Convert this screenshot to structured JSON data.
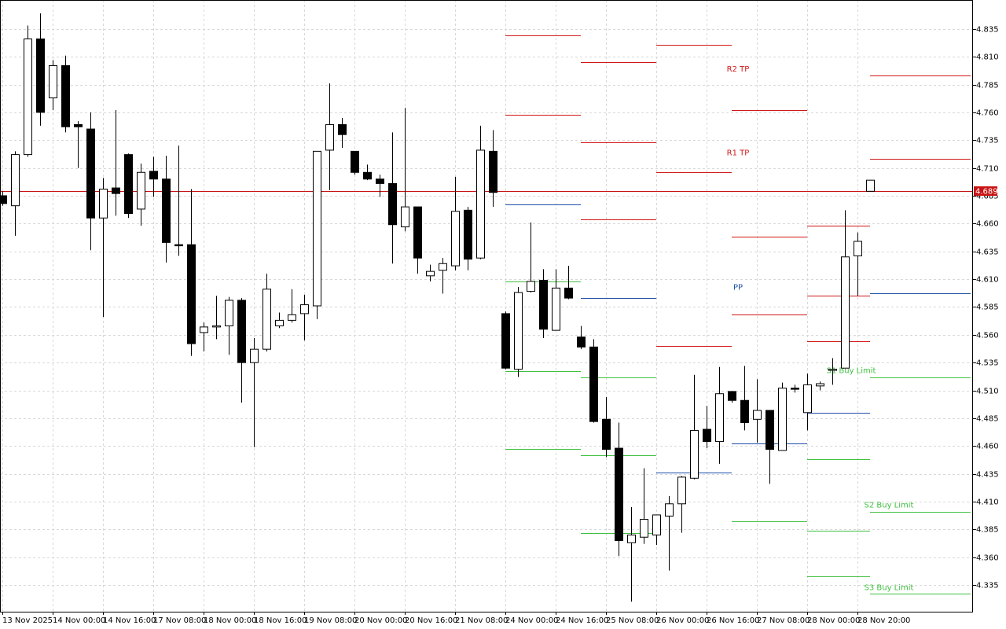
{
  "chart_data": {
    "type": "candlestick",
    "categories": [
      "13 Nov 2025",
      null,
      null,
      null,
      "14 Nov 00:00",
      null,
      null,
      null,
      "14 Nov 16:00",
      null,
      null,
      null,
      "17 Nov 08:00",
      null,
      null,
      null,
      "18 Nov 00:00",
      null,
      null,
      null,
      "18 Nov 16:00",
      null,
      null,
      null,
      "19 Nov 08:00",
      null,
      null,
      null,
      "20 Nov 00:00",
      null,
      null,
      null,
      "20 Nov 16:00",
      null,
      null,
      null,
      "21 Nov 08:00",
      null,
      null,
      null,
      "24 Nov 00:00",
      null,
      null,
      null,
      "24 Nov 16:00",
      null,
      null,
      null,
      "25 Nov 08:00",
      null,
      null,
      null,
      "26 Nov 00:00",
      null,
      null,
      null,
      "26 Nov 16:00",
      null,
      null,
      null,
      "27 Nov 08:00",
      null,
      null,
      null,
      "28 Nov 00:00",
      null,
      null,
      null,
      "28 Nov 20:00",
      null,
      null,
      null,
      null,
      null,
      null,
      null,
      null,
      null
    ],
    "open": [
      4.685,
      4.676,
      4.722,
      4.826,
      4.773,
      4.802,
      4.749,
      4.745,
      4.665,
      4.692,
      4.722,
      4.673,
      4.707,
      4.7,
      4.641,
      4.641,
      4.562,
      4.567,
      4.568,
      4.591,
      4.535,
      4.547,
      4.568,
      4.573,
      4.579,
      4.586,
      4.726,
      4.749,
      4.725,
      4.706,
      4.7,
      4.696,
      4.657,
      4.675,
      4.613,
      4.618,
      4.622,
      4.672,
      4.629,
      4.725,
      4.579,
      4.529,
      4.599,
      4.609,
      4.564,
      4.602,
      4.558,
      4.549,
      4.484,
      4.458,
      4.373,
      4.378,
      4.38,
      4.397,
      4.408,
      4.431,
      4.475,
      4.464,
      4.509,
      4.501,
      4.484,
      4.492,
      4.456,
      4.512,
      4.49,
      4.514,
      4.528,
      4.53,
      4.631,
      4.689,
      null,
      null,
      null,
      null,
      null,
      null,
      null,
      null
    ],
    "high": [
      4.689,
      4.725,
      4.838,
      4.849,
      4.807,
      4.811,
      4.752,
      4.76,
      4.701,
      4.762,
      4.723,
      4.714,
      4.72,
      4.721,
      4.73,
      4.691,
      4.571,
      4.595,
      4.594,
      4.593,
      4.557,
      4.615,
      4.58,
      4.601,
      4.596,
      4.725,
      4.786,
      4.755,
      4.725,
      4.713,
      4.704,
      4.742,
      4.764,
      4.675,
      4.623,
      4.629,
      4.702,
      4.675,
      4.748,
      4.744,
      4.581,
      4.603,
      4.661,
      4.619,
      4.619,
      4.622,
      4.568,
      4.556,
      4.504,
      4.481,
      4.405,
      4.44,
      4.398,
      4.415,
      4.433,
      4.524,
      4.496,
      4.531,
      4.509,
      4.532,
      4.52,
      4.492,
      4.517,
      4.515,
      4.525,
      4.518,
      4.539,
      4.672,
      4.652,
      4.699,
      null,
      null,
      null,
      null,
      null,
      null,
      null,
      null
    ],
    "low": [
      4.676,
      4.649,
      4.72,
      4.748,
      4.762,
      4.742,
      4.71,
      4.636,
      4.576,
      4.667,
      4.665,
      4.658,
      4.684,
      4.625,
      4.631,
      4.541,
      4.545,
      4.556,
      4.542,
      4.499,
      4.459,
      4.545,
      4.566,
      4.571,
      4.555,
      4.574,
      4.69,
      4.728,
      4.704,
      4.699,
      4.684,
      4.624,
      4.653,
      4.615,
      4.608,
      4.597,
      4.618,
      4.618,
      4.628,
      4.675,
      4.529,
      4.522,
      4.598,
      4.557,
      4.564,
      4.592,
      4.547,
      4.481,
      4.45,
      4.361,
      4.32,
      4.372,
      4.371,
      4.348,
      4.382,
      4.43,
      4.458,
      4.444,
      4.499,
      4.474,
      4.463,
      4.426,
      4.456,
      4.508,
      4.474,
      4.51,
      4.515,
      4.53,
      4.595,
      4.689,
      null,
      null,
      null,
      null,
      null,
      null,
      null,
      null
    ],
    "close": [
      4.678,
      4.722,
      4.826,
      4.76,
      4.802,
      4.747,
      4.747,
      4.665,
      4.691,
      4.687,
      4.669,
      4.706,
      4.7,
      4.643,
      4.64,
      4.552,
      4.567,
      4.568,
      4.591,
      4.535,
      4.547,
      4.601,
      4.573,
      4.578,
      4.587,
      4.725,
      4.749,
      4.74,
      4.706,
      4.7,
      4.696,
      4.659,
      4.675,
      4.629,
      4.617,
      4.624,
      4.671,
      4.628,
      4.726,
      4.688,
      4.53,
      4.598,
      4.608,
      4.565,
      4.602,
      4.593,
      4.549,
      4.482,
      4.457,
      4.375,
      4.38,
      4.394,
      4.398,
      4.408,
      4.432,
      4.474,
      4.464,
      4.507,
      4.501,
      4.481,
      4.492,
      4.457,
      4.512,
      4.511,
      4.515,
      4.516,
      4.529,
      4.63,
      4.644,
      4.699,
      null,
      null,
      null,
      null,
      null,
      null,
      null,
      null
    ],
    "levels": [
      {
        "color": "#d01818",
        "values": [
          null,
          null,
          null,
          null,
          null,
          null,
          null,
          null,
          null,
          null,
          null,
          null,
          null,
          null,
          null,
          null,
          null,
          null,
          null,
          null,
          null,
          null,
          null,
          null,
          null,
          null,
          null,
          null,
          null,
          null,
          null,
          null,
          null,
          null,
          null,
          null,
          null,
          null,
          null,
          null,
          null,
          null,
          null,
          null,
          null,
          null,
          4.805,
          4.805,
          4.805,
          4.805,
          4.805,
          4.805,
          4.821,
          4.821,
          4.821,
          4.821,
          4.821,
          4.821,
          4.762,
          4.762,
          4.762,
          4.762,
          4.762,
          4.762,
          4.658,
          4.658,
          4.658,
          4.658,
          4.658,
          null,
          null,
          null,
          null,
          null,
          null,
          null,
          null,
          null
        ]
      },
      {
        "label": "R2 TP",
        "color": "#d01818",
        "values": [
          null,
          null,
          null,
          null,
          null,
          null,
          null,
          null,
          null,
          null,
          null,
          null,
          null,
          null,
          null,
          null,
          null,
          null,
          null,
          null,
          null,
          null,
          null,
          null,
          null,
          null,
          null,
          null,
          null,
          null,
          null,
          null,
          null,
          null,
          null,
          null,
          null,
          null,
          null,
          null,
          4.829,
          4.829,
          4.829,
          4.829,
          4.829,
          4.829,
          4.733,
          4.733,
          4.733,
          4.733,
          4.733,
          4.733,
          4.706,
          4.706,
          4.706,
          4.706,
          4.706,
          4.706,
          4.648,
          4.648,
          4.648,
          4.648,
          4.648,
          4.648,
          4.595,
          4.595,
          4.595,
          4.595,
          4.595,
          4.793,
          4.793,
          4.793,
          4.793,
          4.793,
          4.793,
          4.793,
          4.793,
          null
        ]
      },
      {
        "label": "R1 TP",
        "color": "#d01818",
        "values": [
          null,
          null,
          null,
          null,
          null,
          null,
          null,
          null,
          null,
          null,
          null,
          null,
          null,
          null,
          null,
          null,
          null,
          null,
          null,
          null,
          null,
          null,
          null,
          null,
          null,
          null,
          null,
          null,
          null,
          null,
          null,
          null,
          null,
          null,
          null,
          null,
          null,
          null,
          null,
          null,
          4.758,
          4.758,
          4.758,
          4.758,
          4.758,
          4.758,
          4.664,
          4.664,
          4.664,
          4.664,
          4.664,
          4.664,
          4.55,
          4.55,
          4.55,
          4.55,
          4.55,
          4.55,
          4.578,
          4.578,
          4.578,
          4.578,
          4.578,
          4.578,
          4.554,
          4.554,
          4.554,
          4.554,
          4.554,
          4.718,
          4.718,
          4.718,
          4.718,
          4.718,
          4.718,
          4.718,
          4.718,
          null
        ]
      },
      {
        "label": "PP",
        "color": "#1f4fa8",
        "values": [
          null,
          null,
          null,
          null,
          null,
          null,
          null,
          null,
          null,
          null,
          null,
          null,
          null,
          null,
          null,
          null,
          null,
          null,
          null,
          null,
          null,
          null,
          null,
          null,
          null,
          null,
          null,
          null,
          null,
          null,
          null,
          null,
          null,
          null,
          null,
          null,
          null,
          null,
          null,
          null,
          4.677,
          4.677,
          4.677,
          4.677,
          4.677,
          4.677,
          4.593,
          4.593,
          4.593,
          4.593,
          4.593,
          4.593,
          4.436,
          4.436,
          4.436,
          4.436,
          4.436,
          4.436,
          4.462,
          4.462,
          4.462,
          4.462,
          4.462,
          4.462,
          4.49,
          4.49,
          4.49,
          4.49,
          4.49,
          4.597,
          4.597,
          4.597,
          4.597,
          4.597,
          4.597,
          4.597,
          4.597,
          null
        ]
      },
      {
        "label": "S1 Buy Limit",
        "color": "#40c040",
        "values": [
          null,
          null,
          null,
          null,
          null,
          null,
          null,
          null,
          null,
          null,
          null,
          null,
          null,
          null,
          null,
          null,
          null,
          null,
          null,
          null,
          null,
          null,
          null,
          null,
          null,
          null,
          null,
          null,
          null,
          null,
          null,
          null,
          null,
          null,
          null,
          null,
          null,
          null,
          null,
          null,
          4.608,
          4.608,
          4.608,
          4.608,
          4.608,
          4.608,
          4.522,
          4.522,
          4.522,
          4.522,
          4.522,
          4.522,
          null,
          null,
          null,
          null,
          null,
          null,
          4.392,
          4.392,
          4.392,
          4.392,
          4.392,
          4.392,
          4.448,
          4.448,
          4.448,
          4.448,
          4.448,
          4.522,
          4.522,
          4.522,
          4.522,
          4.522,
          4.522,
          4.522,
          4.522,
          null
        ]
      },
      {
        "label": "S2 Buy Limit",
        "color": "#40c040",
        "values": [
          null,
          null,
          null,
          null,
          null,
          null,
          null,
          null,
          null,
          null,
          null,
          null,
          null,
          null,
          null,
          null,
          null,
          null,
          null,
          null,
          null,
          null,
          null,
          null,
          null,
          null,
          null,
          null,
          null,
          null,
          null,
          null,
          null,
          null,
          null,
          null,
          null,
          null,
          null,
          null,
          4.527,
          4.527,
          4.527,
          4.527,
          4.527,
          4.527,
          4.452,
          4.452,
          4.452,
          4.452,
          4.452,
          4.452,
          null,
          null,
          null,
          null,
          null,
          null,
          null,
          null,
          null,
          null,
          null,
          null,
          4.384,
          4.384,
          4.384,
          4.384,
          4.384,
          4.401,
          4.401,
          4.401,
          4.401,
          4.401,
          4.401,
          4.401,
          4.401,
          null
        ]
      },
      {
        "label": "S3 Buy Limit",
        "color": "#40c040",
        "values": [
          null,
          null,
          null,
          null,
          null,
          null,
          null,
          null,
          null,
          null,
          null,
          null,
          null,
          null,
          null,
          null,
          null,
          null,
          null,
          null,
          null,
          null,
          null,
          null,
          null,
          null,
          null,
          null,
          null,
          null,
          null,
          null,
          null,
          null,
          null,
          null,
          null,
          null,
          null,
          null,
          4.457,
          4.457,
          4.457,
          4.457,
          4.457,
          4.457,
          4.382,
          4.382,
          4.382,
          4.382,
          4.382,
          4.382,
          null,
          null,
          null,
          null,
          null,
          null,
          null,
          null,
          null,
          null,
          null,
          null,
          4.343,
          4.343,
          4.343,
          4.343,
          4.343,
          4.327,
          4.327,
          4.327,
          4.327,
          4.327,
          4.327,
          4.327,
          4.327,
          null
        ]
      }
    ],
    "current_price": 4.689,
    "current_price_color": "#c81414",
    "ylim": [
      4.311,
      4.861
    ],
    "yticks": [
      4.835,
      {
        "value": 4.81,
        "label": "4.810"
      },
      4.785,
      {
        "value": 4.76,
        "label": "4.760"
      },
      4.735,
      {
        "value": 4.71,
        "label": "4.710"
      },
      4.685,
      {
        "value": 4.66,
        "label": "4.660"
      },
      4.635,
      {
        "value": 4.61,
        "label": "4.610"
      },
      4.585,
      {
        "value": 4.56,
        "label": "4.560"
      },
      4.535,
      {
        "value": 4.51,
        "label": "4.510"
      },
      4.485,
      {
        "value": 4.46,
        "label": "4.460"
      },
      4.435,
      {
        "value": 4.41,
        "label": "4.410"
      },
      4.385,
      {
        "value": 4.36,
        "label": "4.360"
      },
      4.335
    ],
    "grid": true
  }
}
